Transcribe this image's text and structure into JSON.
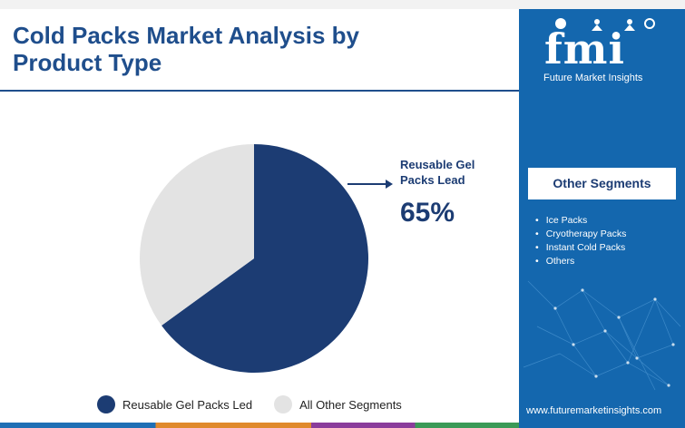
{
  "title": "Cold Packs Market Analysis by Product Type",
  "chart_data": {
    "type": "pie",
    "slices": [
      {
        "label": "Reusable Gel Packs Led",
        "value": 65,
        "color": "#1c3c73"
      },
      {
        "label": "All Other Segments",
        "value": 35,
        "color": "#e3e3e3"
      }
    ],
    "callout": {
      "label": "Reusable Gel Packs Lead",
      "value": "65%"
    }
  },
  "sidebar": {
    "brand": "fmi",
    "brand_name": "Future Market Insights",
    "other_segments_title": "Other Segments",
    "other_segments": [
      "Ice Packs",
      "Cryotherapy Packs",
      "Instant Cold Packs",
      "Others"
    ],
    "website": "www.futuremarketinsights.com"
  },
  "colors": {
    "primary": "#1c3c73",
    "accent_blue": "#1467ae",
    "grey": "#e3e3e3"
  }
}
